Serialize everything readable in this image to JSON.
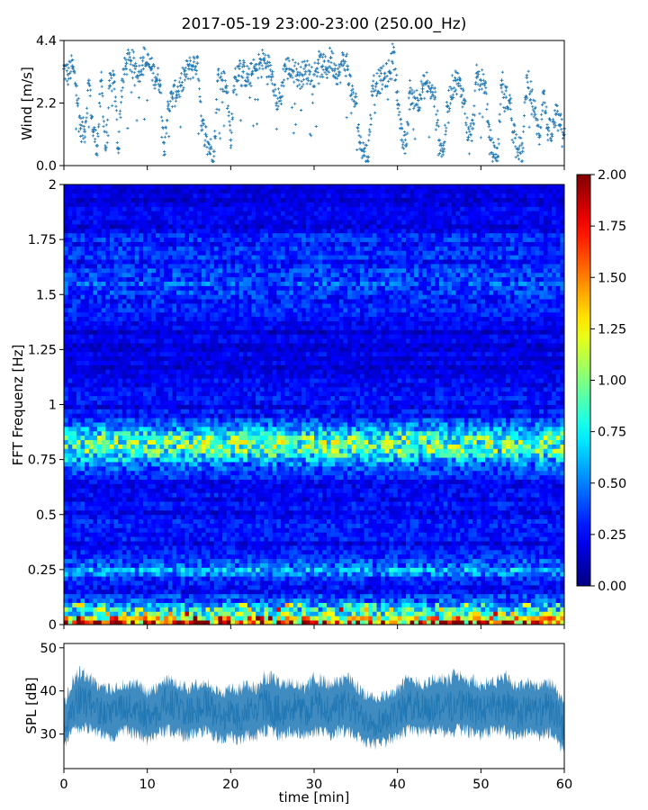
{
  "title": "2017-05-19 23:00-23:00 (250.00_Hz)",
  "chart_data": [
    {
      "id": "wind",
      "type": "scatter",
      "ylabel": "Wind [m/s]",
      "xlabel": "",
      "xlim": [
        0,
        60
      ],
      "ylim": [
        0,
        4.4
      ],
      "yticks": [
        "0.0",
        "2.2",
        "4.4"
      ],
      "x_ticks_labeled": false,
      "color": "#1f77b4",
      "marker": "+",
      "series": [
        {
          "x": [
            0.0,
            0.5,
            1.0,
            1.5,
            2.0,
            2.5,
            3.0,
            3.5,
            4.0,
            4.5,
            5.0,
            5.5,
            6.0,
            6.5,
            7.0,
            7.5,
            8.0,
            8.5,
            9.0,
            9.5,
            10.0,
            10.5,
            11.0,
            11.5,
            12.0,
            12.5,
            13.0,
            13.5,
            14.0,
            14.5,
            15.0,
            15.5,
            16.0,
            16.5,
            17.0,
            17.5,
            18.0,
            18.5,
            19.0,
            19.5,
            20.0,
            20.5,
            21.0,
            21.5,
            22.0,
            22.5,
            23.0,
            23.5,
            24.0,
            24.5,
            25.0,
            25.5,
            26.0,
            26.5,
            27.0,
            27.5,
            28.0,
            28.5,
            29.0,
            29.5,
            30.0,
            30.5,
            31.0,
            31.5,
            32.0,
            32.5,
            33.0,
            33.5,
            34.0,
            34.5,
            35.0,
            35.5,
            36.0,
            36.5,
            37.0,
            37.5,
            38.0,
            38.5,
            39.0,
            39.5,
            40.0,
            40.5,
            41.0,
            41.5,
            42.0,
            42.5,
            43.0,
            43.5,
            44.0,
            44.5,
            45.0,
            45.5,
            46.0,
            46.5,
            47.0,
            47.5,
            48.0,
            48.5,
            49.0,
            49.5,
            50.0,
            50.5,
            51.0,
            51.5,
            52.0,
            52.5,
            53.0,
            53.5,
            54.0,
            54.5,
            55.0,
            55.5,
            56.0,
            56.5,
            57.0,
            57.5,
            58.0,
            58.5,
            59.0,
            59.5,
            60.0
          ],
          "y": [
            3.4,
            3.2,
            3.5,
            2.8,
            1.3,
            1.2,
            3.0,
            1.2,
            0.7,
            3.0,
            0.6,
            2.8,
            3.2,
            0.6,
            3.0,
            3.6,
            3.7,
            3.5,
            3.3,
            3.8,
            3.6,
            3.4,
            3.1,
            3.0,
            0.8,
            2.0,
            2.4,
            2.6,
            2.8,
            3.2,
            3.4,
            3.5,
            3.6,
            1.4,
            1.1,
            0.6,
            0.5,
            3.2,
            3.0,
            2.8,
            0.9,
            3.1,
            3.5,
            3.3,
            3.1,
            3.2,
            3.4,
            3.6,
            3.7,
            3.5,
            3.3,
            2.2,
            2.4,
            3.5,
            3.4,
            3.3,
            3.2,
            3.2,
            3.3,
            3.3,
            3.2,
            3.6,
            3.5,
            3.4,
            3.8,
            3.4,
            3.2,
            3.7,
            3.5,
            2.5,
            2.2,
            0.8,
            0.5,
            0.3,
            2.8,
            2.9,
            3.0,
            3.1,
            3.3,
            4.0,
            2.6,
            0.9,
            0.7,
            2.6,
            2.4,
            2.3,
            2.7,
            2.9,
            2.6,
            2.4,
            0.9,
            0.5,
            2.1,
            2.7,
            3.0,
            2.8,
            2.3,
            1.0,
            1.3,
            3.1,
            3.0,
            2.9,
            1.0,
            0.4,
            0.3,
            3.0,
            2.4,
            2.2,
            1.2,
            0.6,
            0.5,
            3.1,
            2.6,
            1.8,
            1.0,
            2.6,
            1.3,
            1.1,
            1.8,
            1.4,
            1.3
          ]
        }
      ]
    },
    {
      "id": "spectrogram",
      "type": "heatmap",
      "ylabel": "FFT Frequenz [Hz]",
      "xlabel": "",
      "xlim": [
        0,
        60
      ],
      "ylim": [
        0,
        2
      ],
      "yticks": [
        "0",
        "0.25",
        "0.5",
        "0.75",
        "1",
        "1.25",
        "1.5",
        "1.75",
        "2"
      ],
      "x_ticks_labeled": false,
      "colormap": "jet",
      "clim": [
        0,
        2
      ],
      "colorbar_ticks": [
        "0.00",
        "0.25",
        "0.50",
        "0.75",
        "1.00",
        "1.25",
        "1.50",
        "1.75",
        "2.00"
      ],
      "y": [
        0.0,
        0.05,
        0.1,
        0.15,
        0.2,
        0.25,
        0.3,
        0.35,
        0.4,
        0.45,
        0.5,
        0.55,
        0.6,
        0.65,
        0.7,
        0.75,
        0.8,
        0.85,
        0.9,
        0.95,
        1.0,
        1.05,
        1.1,
        1.15,
        1.2,
        1.25,
        1.3,
        1.35,
        1.4,
        1.45,
        1.5,
        1.55,
        1.6,
        1.65,
        1.7,
        1.75,
        1.8,
        1.85,
        1.9,
        1.95,
        2.0
      ],
      "values": [
        1.6,
        0.9,
        0.45,
        0.3,
        0.3,
        0.55,
        0.3,
        0.25,
        0.25,
        0.25,
        0.25,
        0.25,
        0.25,
        0.25,
        0.35,
        0.6,
        0.95,
        0.85,
        0.45,
        0.3,
        0.25,
        0.25,
        0.25,
        0.2,
        0.2,
        0.2,
        0.2,
        0.2,
        0.25,
        0.3,
        0.35,
        0.4,
        0.35,
        0.3,
        0.3,
        0.3,
        0.25,
        0.2,
        0.2,
        0.2,
        0.15
      ]
    },
    {
      "id": "spl",
      "type": "line",
      "ylabel": "SPL [dB]",
      "xlabel": "time [min]",
      "xlim": [
        0,
        60
      ],
      "ylim": [
        22,
        51
      ],
      "yticks": [
        "30",
        "40",
        "50"
      ],
      "xticks": [
        "0",
        "10",
        "20",
        "30",
        "40",
        "50",
        "60"
      ],
      "color": "#1f77b4",
      "series": [
        {
          "x": [
            0.0,
            1.0,
            2.0,
            3.0,
            4.0,
            5.0,
            6.0,
            7.0,
            8.0,
            9.0,
            10.0,
            11.0,
            12.0,
            13.0,
            14.0,
            15.0,
            16.0,
            17.0,
            18.0,
            19.0,
            20.0,
            21.0,
            22.0,
            23.0,
            24.0,
            25.0,
            26.0,
            27.0,
            28.0,
            29.0,
            30.0,
            31.0,
            32.0,
            33.0,
            34.0,
            35.0,
            36.0,
            37.0,
            38.0,
            39.0,
            40.0,
            41.0,
            42.0,
            43.0,
            44.0,
            45.0,
            46.0,
            47.0,
            48.0,
            49.0,
            50.0,
            51.0,
            52.0,
            53.0,
            54.0,
            55.0,
            56.0,
            57.0,
            58.0,
            59.0,
            60.0
          ],
          "y_mean": [
            31,
            36,
            38,
            37,
            36,
            35,
            35,
            36,
            36,
            36,
            34,
            35,
            37,
            37,
            36,
            35,
            36,
            37,
            35,
            34,
            35,
            34,
            36,
            35,
            37,
            36,
            35,
            37,
            36,
            35,
            37,
            36,
            36,
            36,
            37,
            35,
            34,
            33,
            33,
            34,
            35,
            36,
            37,
            36,
            36,
            37,
            36,
            37,
            37,
            36,
            35,
            37,
            36,
            37,
            35,
            35,
            36,
            35,
            36,
            35,
            31
          ],
          "y_min": [
            26,
            29,
            30,
            30,
            29,
            28,
            28,
            29,
            29,
            28,
            27,
            28,
            29,
            29,
            28,
            28,
            29,
            29,
            28,
            27,
            28,
            27,
            28,
            28,
            29,
            29,
            28,
            29,
            29,
            28,
            29,
            29,
            28,
            29,
            29,
            28,
            27,
            26,
            26,
            27,
            28,
            29,
            29,
            29,
            29,
            29,
            29,
            29,
            29,
            29,
            28,
            29,
            29,
            29,
            28,
            28,
            29,
            28,
            29,
            27,
            24
          ],
          "y_max": [
            38,
            44,
            46,
            45,
            43,
            42,
            42,
            43,
            43,
            43,
            41,
            42,
            44,
            44,
            43,
            42,
            43,
            44,
            42,
            41,
            42,
            42,
            43,
            42,
            45,
            45,
            43,
            44,
            43,
            42,
            45,
            44,
            43,
            44,
            45,
            43,
            41,
            40,
            40,
            41,
            42,
            44,
            44,
            43,
            44,
            45,
            44,
            46,
            44,
            44,
            43,
            44,
            44,
            45,
            43,
            43,
            44,
            42,
            44,
            42,
            38
          ]
        }
      ]
    }
  ]
}
